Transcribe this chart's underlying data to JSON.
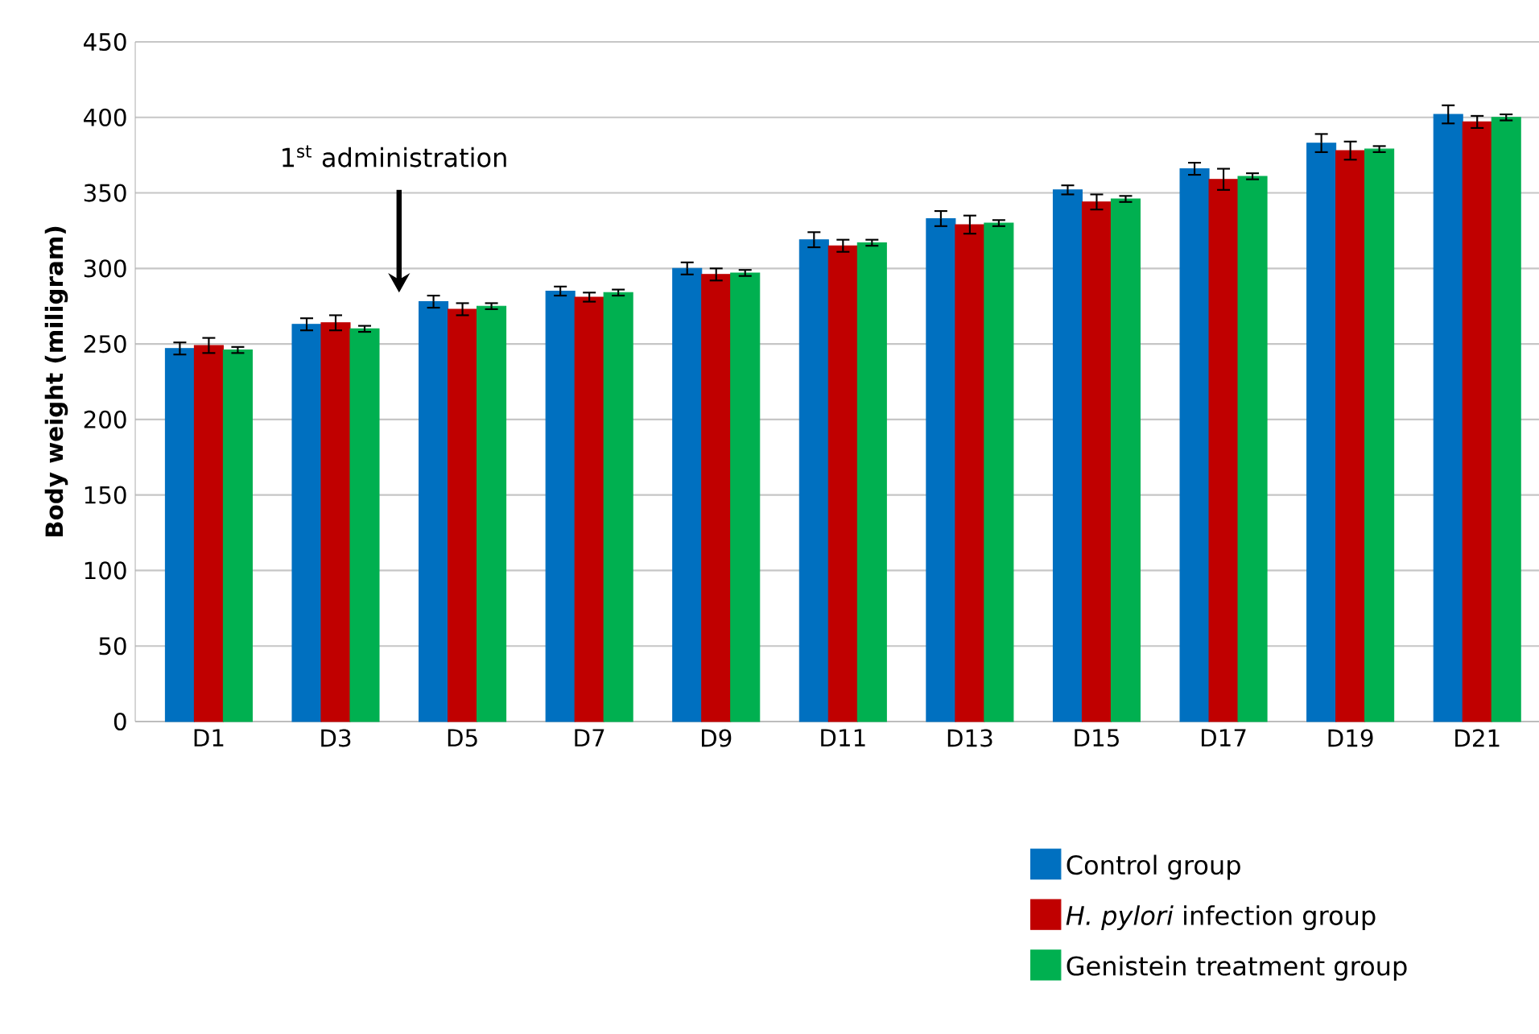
{
  "chart_data": {
    "type": "bar",
    "ylabel": "Body weight (miligram)",
    "categories": [
      "D1",
      "D3",
      "D5",
      "D7",
      "D9",
      "D11",
      "D13",
      "D15",
      "D17",
      "D19",
      "D21"
    ],
    "series": [
      {
        "name": "Control group",
        "color": "#0070c0",
        "values": [
          247,
          263,
          278,
          285,
          300,
          319,
          333,
          352,
          366,
          383,
          402
        ],
        "errors": [
          4,
          4,
          4,
          3,
          4,
          5,
          5,
          3,
          4,
          6,
          6
        ]
      },
      {
        "name": "*H. pylori* infection group",
        "color": "#c00000",
        "values": [
          249,
          264,
          273,
          281,
          296,
          315,
          329,
          344,
          359,
          378,
          397
        ],
        "errors": [
          5,
          5,
          4,
          3,
          4,
          4,
          6,
          5,
          7,
          6,
          4
        ]
      },
      {
        "name": "Genistein treatment group",
        "color": "#00b050",
        "values": [
          246,
          260,
          275,
          284,
          297,
          317,
          330,
          346,
          361,
          379,
          400
        ],
        "errors": [
          2,
          2,
          2,
          2,
          2,
          2,
          2,
          2,
          2,
          2,
          2
        ]
      }
    ],
    "ylim": [
      0,
      450
    ],
    "yticks": [
      0,
      50,
      100,
      150,
      200,
      250,
      300,
      350,
      400,
      450
    ],
    "grid": "y",
    "legend": "bottom right",
    "annotations": [
      "1$^{st}$ administration"
    ]
  }
}
